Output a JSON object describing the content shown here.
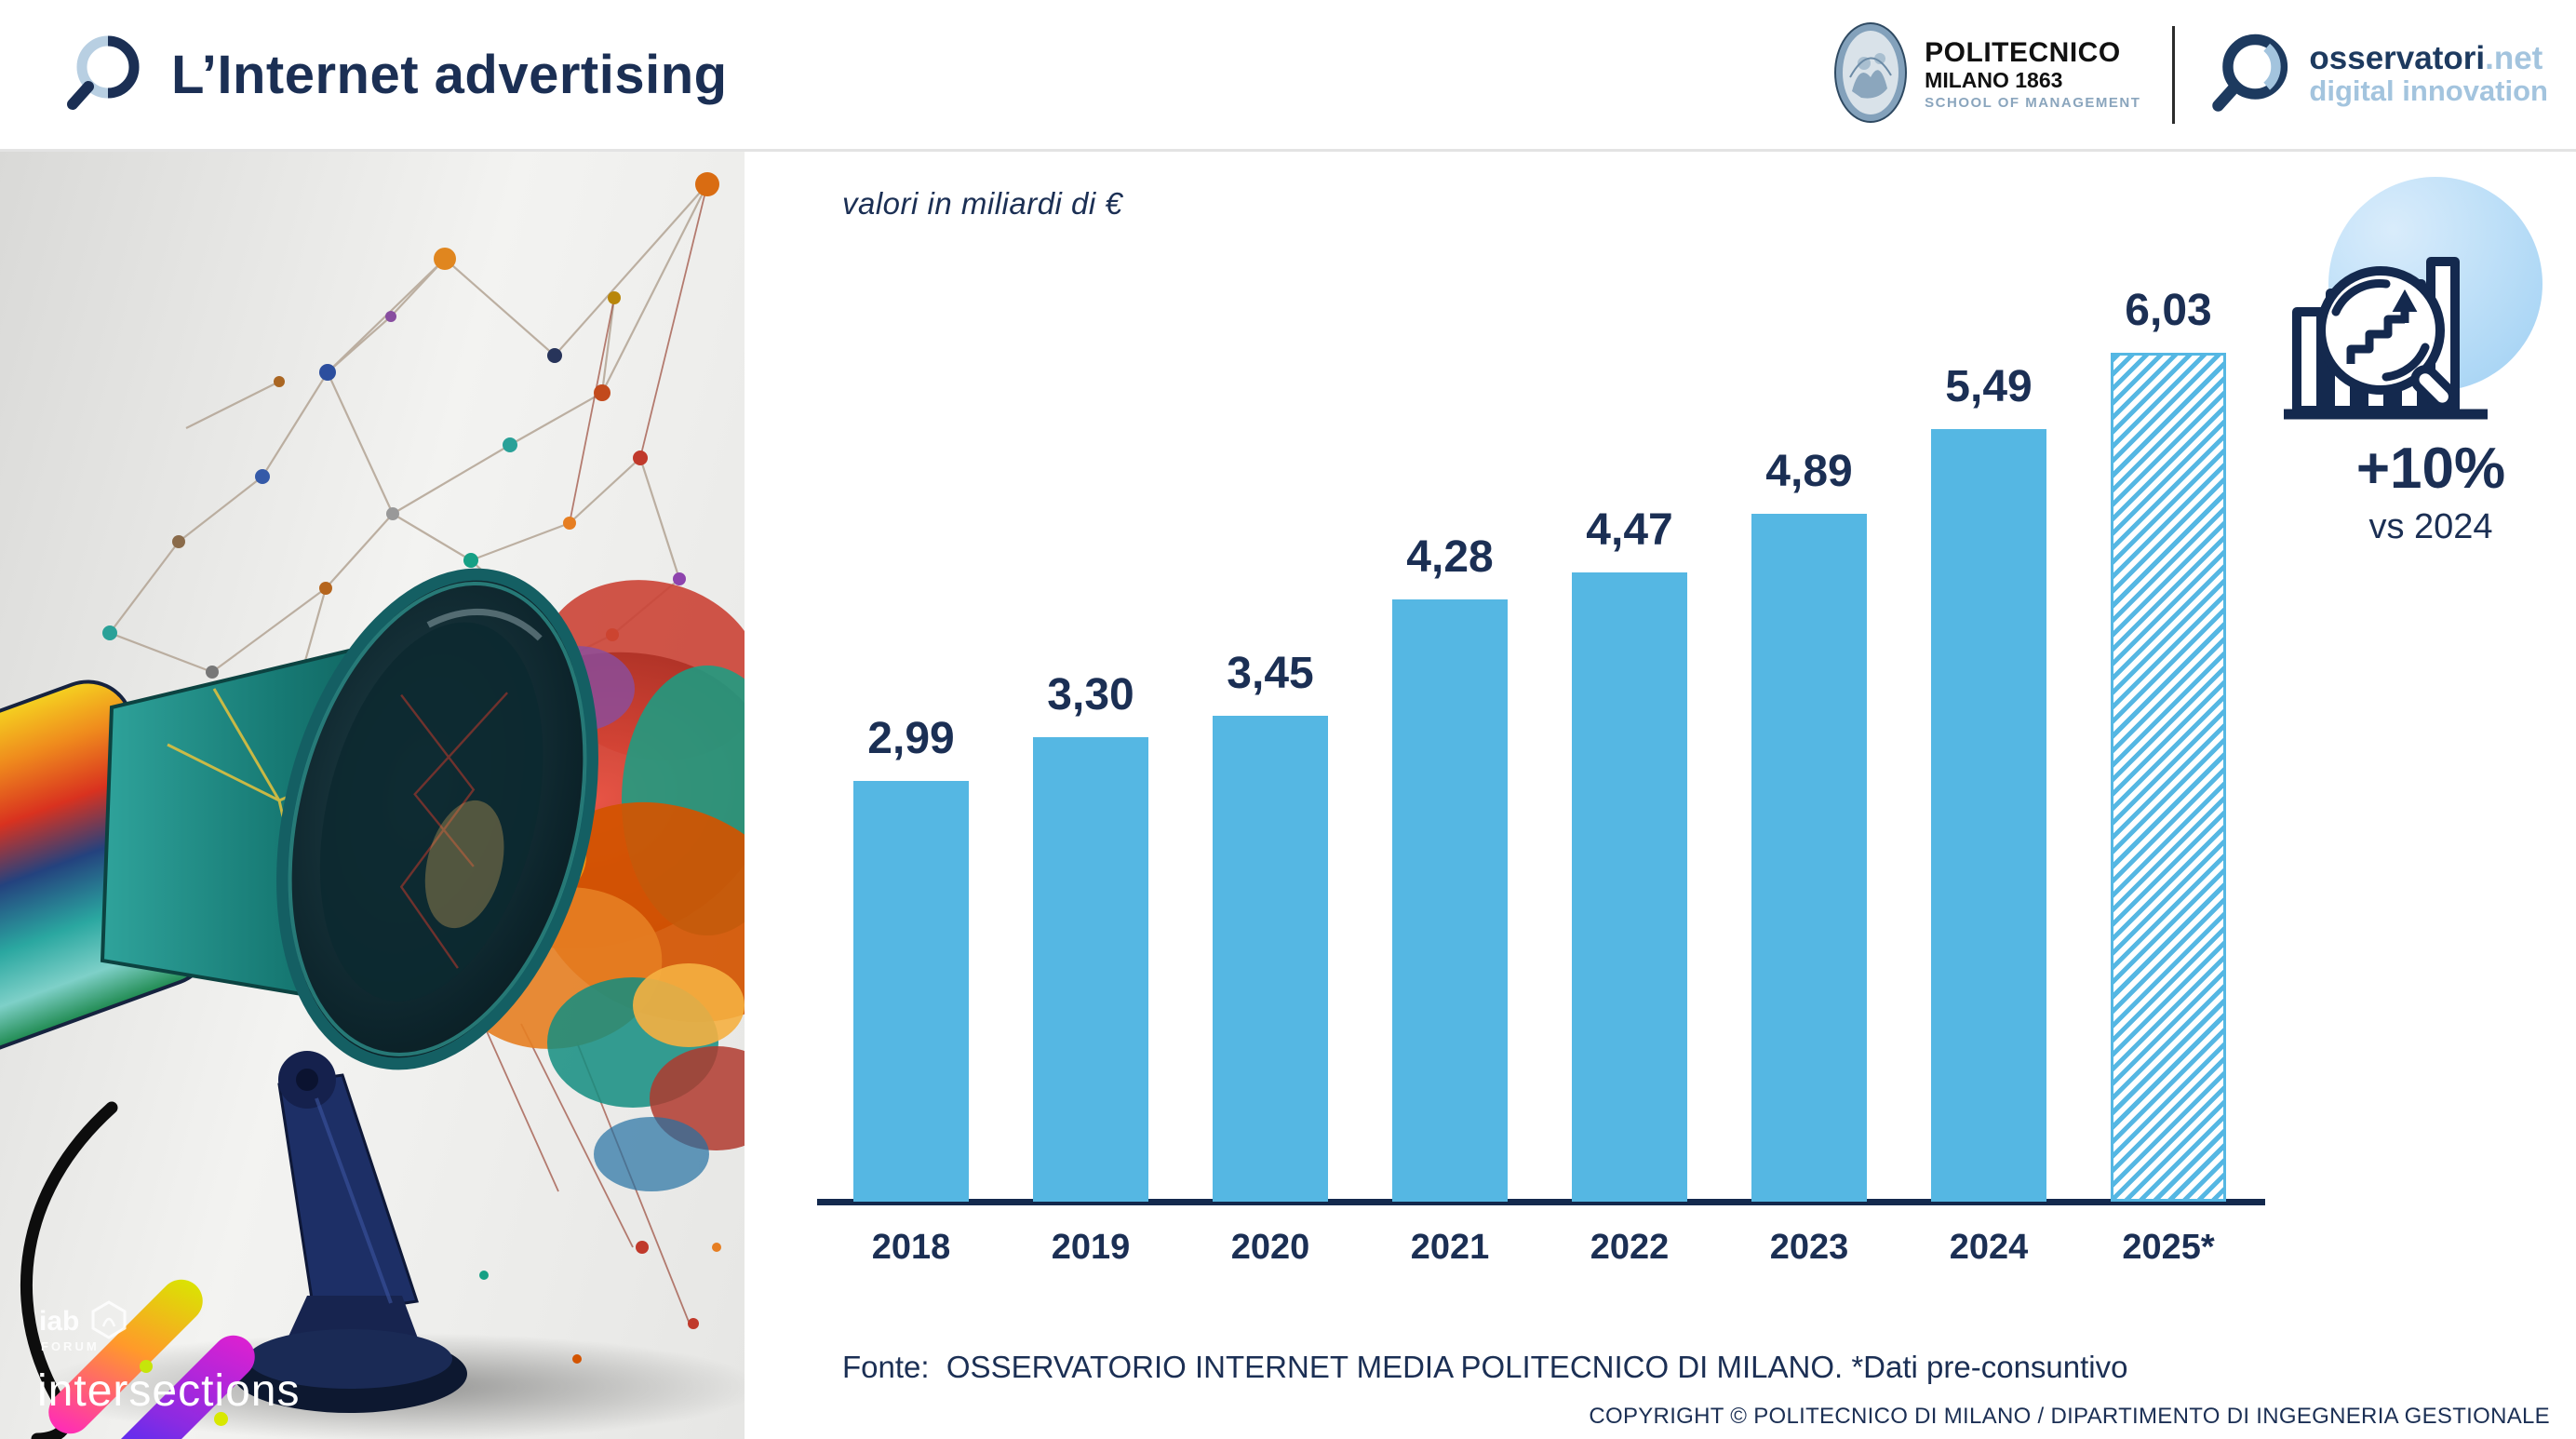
{
  "header": {
    "title": "L’Internet advertising",
    "polimi_logo": {
      "line1": "POLITECNICO",
      "line2": "MILANO 1863",
      "line3": "SCHOOL OF MANAGEMENT"
    },
    "osservatori_logo": {
      "brand": "osservatori",
      "net": ".net",
      "tagline": "digital innovation"
    }
  },
  "chart_data": {
    "type": "bar",
    "note": "valori in miliardi di €",
    "categories": [
      "2018",
      "2019",
      "2020",
      "2021",
      "2022",
      "2023",
      "2024",
      "2025*"
    ],
    "values": [
      2.99,
      3.3,
      3.45,
      4.28,
      4.47,
      4.89,
      5.49,
      6.03
    ],
    "value_labels": [
      "2,99",
      "3,30",
      "3,45",
      "4,28",
      "4,47",
      "4,89",
      "5,49",
      "6,03"
    ],
    "hatched_index": 7,
    "bar_color": "#55b7e3",
    "label_color": "#1b2f54",
    "ylim": [
      0,
      6.4
    ],
    "grid": false,
    "legend": null
  },
  "badge": {
    "delta": "+10%",
    "caption": "vs 2024"
  },
  "footer": {
    "fonte": "Fonte:  OSSERVATORIO INTERNET MEDIA POLITECNICO DI MILANO. *Dati pre-consuntivo",
    "copyright": "COPYRIGHT © POLITECNICO DI MILANO / DIPARTIMENTO DI INGEGNERIA GESTIONALE"
  },
  "artwork_watermark": {
    "iab": "iab",
    "forum": "FORUM",
    "name": "intersections"
  },
  "colors": {
    "navy": "#1b2f54",
    "bar_blue": "#55b7e3",
    "light_blue": "#a3c4de",
    "badge_circle": "#bfe0f8"
  }
}
